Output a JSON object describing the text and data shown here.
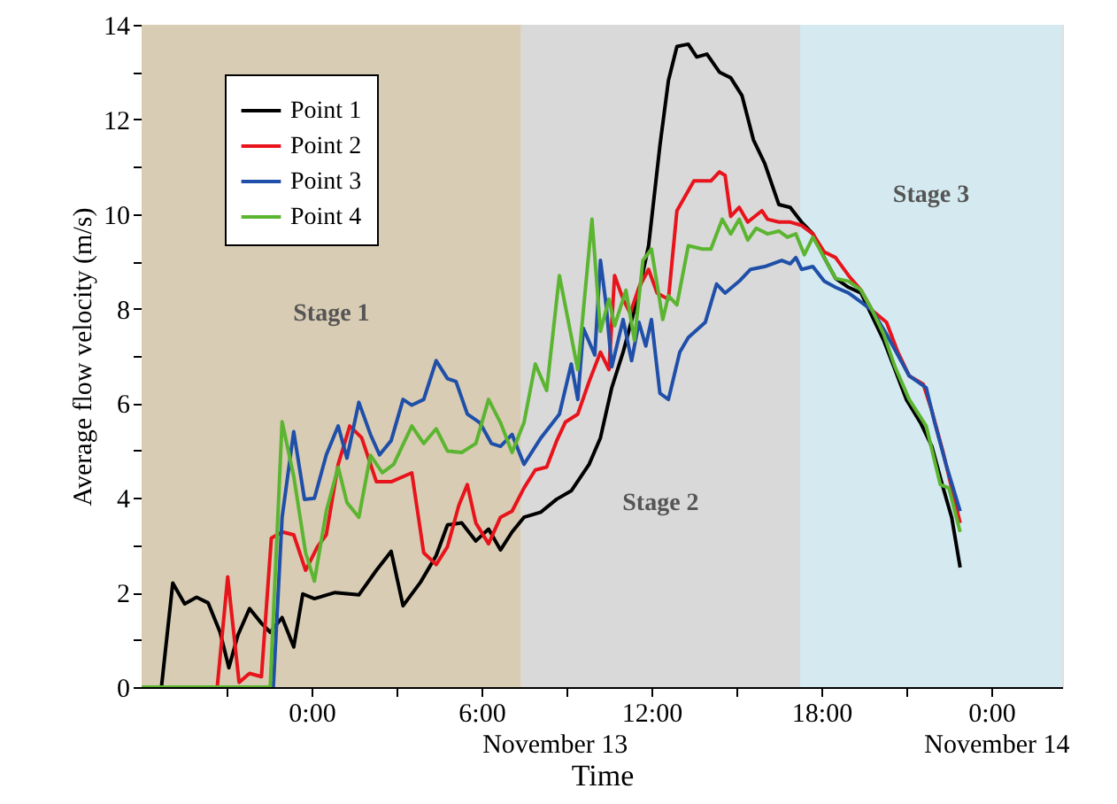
{
  "chart_data": {
    "type": "line",
    "xlabel": "Time",
    "ylabel": "Average flow velocity (m/s)",
    "xlim": [
      -6,
      26.5
    ],
    "ylim": [
      0,
      14
    ],
    "xticks": [
      {
        "value": -3,
        "label": null
      },
      {
        "value": 0,
        "label": "0:00"
      },
      {
        "value": 3,
        "label": null
      },
      {
        "value": 6,
        "label": "6:00"
      },
      {
        "value": 9,
        "label": null
      },
      {
        "value": 12,
        "label": "12:00"
      },
      {
        "value": 15,
        "label": null
      },
      {
        "value": 18,
        "label": "18:00"
      },
      {
        "value": 21,
        "label": null
      },
      {
        "value": 24,
        "label": "0:00"
      }
    ],
    "yticks": [
      0,
      {
        "value": 1,
        "label": null
      },
      2,
      {
        "value": 3,
        "label": null
      },
      4,
      {
        "value": 5,
        "label": null
      },
      6,
      {
        "value": 7,
        "label": null
      },
      8,
      {
        "value": 9,
        "label": null
      },
      10,
      {
        "value": 11,
        "label": null
      },
      12,
      {
        "value": 13,
        "label": null
      },
      14
    ],
    "grid": false,
    "legend": "top left",
    "marker": "none",
    "line_style": "solid",
    "annotations": [
      "November 13",
      "November 14"
    ],
    "bands": [
      {
        "axis": "x",
        "from": -6,
        "to": 7.4,
        "label": "Stage 1",
        "color": "#d8ccb4"
      },
      {
        "axis": "x",
        "from": 7.4,
        "to": 17.25,
        "label": "Stage 2",
        "color": "#d9d9d9"
      },
      {
        "axis": "x",
        "from": 17.25,
        "to": 26.5,
        "label": "Stage 3",
        "color": "#d4eaf0"
      }
    ],
    "series": [
      {
        "name": "Point 1",
        "color": "#000000",
        "x": [
          -6,
          -5.3,
          -4.9,
          -4.48,
          -4.06,
          -3.65,
          -3.23,
          -2.92,
          -2.6,
          -2.19,
          -1.77,
          -1.46,
          -1.04,
          -0.63,
          -0.31,
          0.1,
          0.83,
          1.67,
          2.29,
          2.81,
          3.23,
          3.85,
          4.4,
          4.8,
          5.3,
          5.8,
          6.25,
          6.67,
          7.08,
          7.5,
          8.1,
          8.65,
          9.17,
          9.8,
          10.2,
          10.6,
          11.0,
          11.5,
          11.9,
          12.3,
          12.6,
          12.9,
          13.3,
          13.6,
          13.96,
          14.4,
          14.8,
          15.2,
          15.6,
          16.0,
          16.5,
          16.9,
          17.3,
          17.7,
          18.1,
          18.5,
          18.96,
          19.4,
          19.8,
          20.2,
          20.6,
          21.0,
          21.5,
          21.9,
          22.3,
          22.6,
          22.9
        ],
        "values": [
          0,
          0,
          2.2,
          1.76,
          1.9,
          1.78,
          1.16,
          0.41,
          1.1,
          1.66,
          1.35,
          1.16,
          1.47,
          0.85,
          1.97,
          1.87,
          2.0,
          1.95,
          2.47,
          2.87,
          1.72,
          2.22,
          2.78,
          3.43,
          3.47,
          3.09,
          3.34,
          2.9,
          3.28,
          3.59,
          3.7,
          3.97,
          4.15,
          4.71,
          5.27,
          6.33,
          7.08,
          8.2,
          9.33,
          11.45,
          12.82,
          13.54,
          13.59,
          13.32,
          13.38,
          13.0,
          12.88,
          12.5,
          11.57,
          11.07,
          10.2,
          10.14,
          9.83,
          9.58,
          9.08,
          8.64,
          8.45,
          8.33,
          7.83,
          7.33,
          6.71,
          6.08,
          5.59,
          5.09,
          4.21,
          3.59,
          2.53
        ]
      },
      {
        "name": "Point 2",
        "color": "#e8141c",
        "x": [
          -6,
          -3.33,
          -2.96,
          -2.56,
          -2.19,
          -1.77,
          -1.42,
          -1.04,
          -0.63,
          -0.21,
          0.21,
          0.52,
          0.94,
          1.35,
          1.77,
          2.29,
          2.81,
          3.54,
          3.96,
          4.4,
          4.8,
          5.2,
          5.5,
          5.8,
          6.25,
          6.67,
          7.08,
          7.5,
          7.9,
          8.3,
          8.65,
          8.96,
          9.4,
          9.8,
          10.2,
          10.5,
          10.7,
          11.0,
          11.25,
          11.56,
          11.9,
          12.2,
          12.6,
          12.9,
          13.5,
          14.1,
          14.4,
          14.6,
          14.8,
          15.1,
          15.4,
          15.9,
          16.1,
          16.5,
          16.9,
          17.3,
          17.7,
          18.1,
          18.5,
          18.96,
          19.4,
          19.8,
          20.3,
          20.7,
          21.1,
          21.6,
          21.9,
          22.3,
          22.6,
          22.9
        ],
        "values": [
          0,
          0,
          2.33,
          0.1,
          0.29,
          0.22,
          3.15,
          3.28,
          3.22,
          2.47,
          2.97,
          3.22,
          4.71,
          5.52,
          5.27,
          4.34,
          4.34,
          4.53,
          2.84,
          2.59,
          2.97,
          3.84,
          4.28,
          3.47,
          3.03,
          3.59,
          3.72,
          4.21,
          4.59,
          4.65,
          5.2,
          5.6,
          5.77,
          6.46,
          7.08,
          6.71,
          8.7,
          8.2,
          7.9,
          8.45,
          8.83,
          8.33,
          8.2,
          10.07,
          10.7,
          10.7,
          10.89,
          10.82,
          9.95,
          10.14,
          9.83,
          10.07,
          9.89,
          9.83,
          9.83,
          9.76,
          9.58,
          9.2,
          9.08,
          8.7,
          8.39,
          7.96,
          7.71,
          7.08,
          6.58,
          6.4,
          5.84,
          4.96,
          4.21,
          3.47
        ]
      },
      {
        "name": "Point 3",
        "color": "#1f4fa8",
        "x": [
          -6,
          -1.35,
          -1.04,
          -0.63,
          -0.25,
          0.1,
          0.52,
          0.94,
          1.25,
          1.67,
          2.08,
          2.4,
          2.81,
          3.23,
          3.54,
          3.96,
          4.4,
          4.8,
          5.1,
          5.5,
          5.94,
          6.35,
          6.67,
          7.08,
          7.5,
          8.1,
          8.75,
          9.17,
          9.4,
          9.6,
          10.0,
          10.2,
          10.4,
          10.6,
          11.0,
          11.3,
          11.56,
          11.8,
          12.0,
          12.3,
          12.6,
          13.0,
          13.3,
          13.9,
          14.3,
          14.6,
          15.1,
          15.5,
          16.0,
          16.6,
          16.9,
          17.1,
          17.3,
          17.7,
          18.1,
          18.5,
          18.96,
          19.4,
          19.8,
          20.3,
          20.7,
          21.1,
          21.7,
          22.0,
          22.4,
          22.9
        ],
        "values": [
          0,
          0,
          3.59,
          5.4,
          3.97,
          3.99,
          4.91,
          5.52,
          4.84,
          6.02,
          5.34,
          4.91,
          5.21,
          6.08,
          5.96,
          6.08,
          6.9,
          6.52,
          6.46,
          5.77,
          5.59,
          5.15,
          5.09,
          5.34,
          4.71,
          5.27,
          5.77,
          6.83,
          6.08,
          7.58,
          7.02,
          9.02,
          8.08,
          6.77,
          7.77,
          6.9,
          7.71,
          7.21,
          7.77,
          6.21,
          6.08,
          7.08,
          7.39,
          7.71,
          8.52,
          8.33,
          8.58,
          8.83,
          8.89,
          9.02,
          8.95,
          9.08,
          8.83,
          8.89,
          8.58,
          8.45,
          8.33,
          8.14,
          7.96,
          7.46,
          7.02,
          6.58,
          6.33,
          5.59,
          4.71,
          3.72
        ]
      },
      {
        "name": "Point 4",
        "color": "#5cb531",
        "x": [
          -6,
          -1.46,
          -1.04,
          -0.63,
          -0.21,
          0.1,
          0.52,
          0.94,
          1.25,
          1.67,
          2.08,
          2.5,
          2.9,
          3.54,
          3.96,
          4.4,
          4.8,
          5.3,
          5.8,
          6.25,
          6.67,
          7.08,
          7.5,
          7.9,
          8.3,
          8.75,
          9.4,
          9.9,
          10.2,
          10.5,
          10.7,
          11.1,
          11.4,
          11.7,
          12.0,
          12.4,
          12.6,
          12.9,
          13.3,
          13.8,
          14.1,
          14.5,
          14.8,
          15.1,
          15.4,
          15.7,
          16.1,
          16.5,
          16.8,
          17.1,
          17.4,
          17.7,
          18.1,
          18.5,
          18.96,
          19.4,
          19.8,
          20.2,
          20.6,
          21.1,
          21.7,
          22.2,
          22.5,
          22.9
        ],
        "values": [
          0,
          0,
          5.61,
          4.46,
          2.84,
          2.24,
          3.72,
          4.65,
          3.9,
          3.59,
          4.9,
          4.53,
          4.71,
          5.52,
          5.15,
          5.46,
          4.99,
          4.96,
          5.15,
          6.08,
          5.59,
          4.96,
          5.59,
          6.83,
          6.27,
          8.7,
          6.71,
          9.89,
          7.52,
          8.2,
          7.64,
          8.39,
          7.33,
          9.02,
          9.26,
          7.77,
          8.27,
          8.08,
          9.33,
          9.26,
          9.26,
          9.89,
          9.58,
          9.89,
          9.45,
          9.7,
          9.58,
          9.64,
          9.51,
          9.58,
          9.14,
          9.51,
          9.08,
          8.64,
          8.58,
          8.39,
          7.96,
          7.46,
          6.77,
          6.08,
          5.52,
          4.28,
          4.21,
          3.28
        ]
      }
    ]
  }
}
